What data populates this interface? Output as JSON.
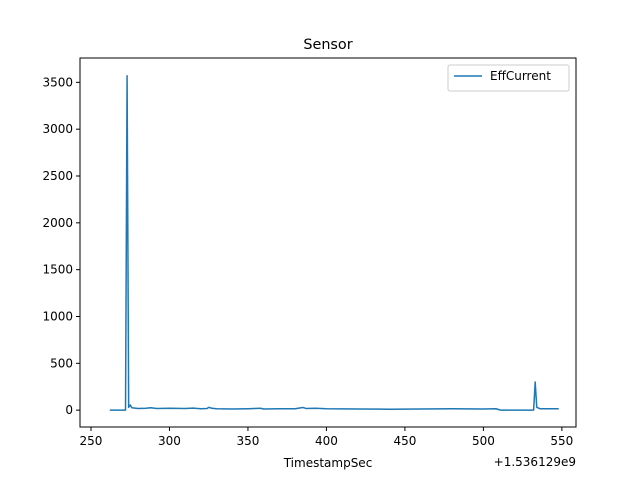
{
  "chart_data": {
    "type": "line",
    "title": "Sensor",
    "xlabel": "TimestampSec",
    "ylabel": "",
    "x_offset_label": "+1.536129e9",
    "xlim": [
      243,
      559
    ],
    "ylim": [
      -180,
      3760
    ],
    "x_ticks": [
      250,
      300,
      350,
      400,
      450,
      500,
      550
    ],
    "y_ticks": [
      0,
      500,
      1000,
      1500,
      2000,
      2500,
      3000,
      3500
    ],
    "grid": false,
    "legend_position": "top-right",
    "color": "#1f77b4",
    "series": [
      {
        "name": "EffCurrent",
        "points": [
          [
            262,
            0
          ],
          [
            270,
            0
          ],
          [
            272,
            0
          ],
          [
            273,
            3570
          ],
          [
            274,
            30
          ],
          [
            275,
            55
          ],
          [
            276,
            25
          ],
          [
            280,
            18
          ],
          [
            285,
            20
          ],
          [
            288,
            25
          ],
          [
            292,
            18
          ],
          [
            300,
            20
          ],
          [
            310,
            18
          ],
          [
            315,
            22
          ],
          [
            320,
            15
          ],
          [
            324,
            18
          ],
          [
            325,
            30
          ],
          [
            327,
            20
          ],
          [
            330,
            15
          ],
          [
            340,
            12
          ],
          [
            350,
            15
          ],
          [
            358,
            20
          ],
          [
            360,
            12
          ],
          [
            370,
            15
          ],
          [
            380,
            15
          ],
          [
            385,
            28
          ],
          [
            387,
            18
          ],
          [
            393,
            20
          ],
          [
            400,
            15
          ],
          [
            420,
            12
          ],
          [
            440,
            10
          ],
          [
            460,
            12
          ],
          [
            480,
            15
          ],
          [
            500,
            12
          ],
          [
            508,
            15
          ],
          [
            511,
            0
          ],
          [
            520,
            0
          ],
          [
            530,
            0
          ],
          [
            532,
            0
          ],
          [
            533,
            300
          ],
          [
            534,
            30
          ],
          [
            536,
            15
          ],
          [
            540,
            15
          ],
          [
            548,
            15
          ]
        ]
      }
    ]
  }
}
